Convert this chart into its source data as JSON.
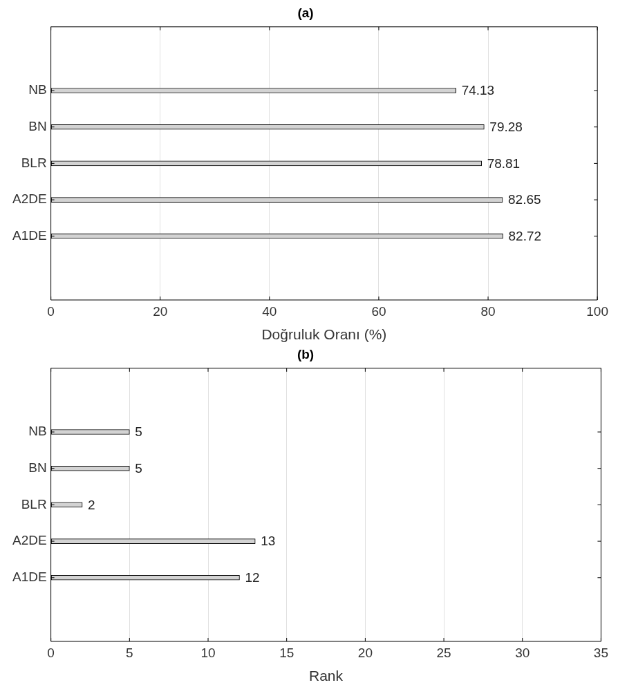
{
  "chart_data": [
    {
      "type": "bar",
      "orientation": "horizontal",
      "title": "(a)",
      "xlabel": "Doğruluk Oranı (%)",
      "categories": [
        "NB",
        "BN",
        "BLR",
        "A2DE",
        "A1DE"
      ],
      "values": [
        74.13,
        79.28,
        78.81,
        82.65,
        82.72
      ],
      "color": "#d3d3d3",
      "xlim": [
        0,
        100
      ],
      "xticks": [
        0,
        20,
        40,
        60,
        80,
        100
      ],
      "grid": "x",
      "data_labels": true
    },
    {
      "type": "bar",
      "orientation": "horizontal",
      "title": "(b)",
      "xlabel": "Rank",
      "categories": [
        "NB",
        "BN",
        "BLR",
        "A2DE",
        "A1DE"
      ],
      "values": [
        5,
        5,
        2,
        13,
        12
      ],
      "color": "#d3d3d3",
      "xlim": [
        0,
        35
      ],
      "xticks": [
        0,
        5,
        10,
        15,
        20,
        25,
        30,
        35
      ],
      "grid": "x",
      "data_labels": true
    }
  ]
}
